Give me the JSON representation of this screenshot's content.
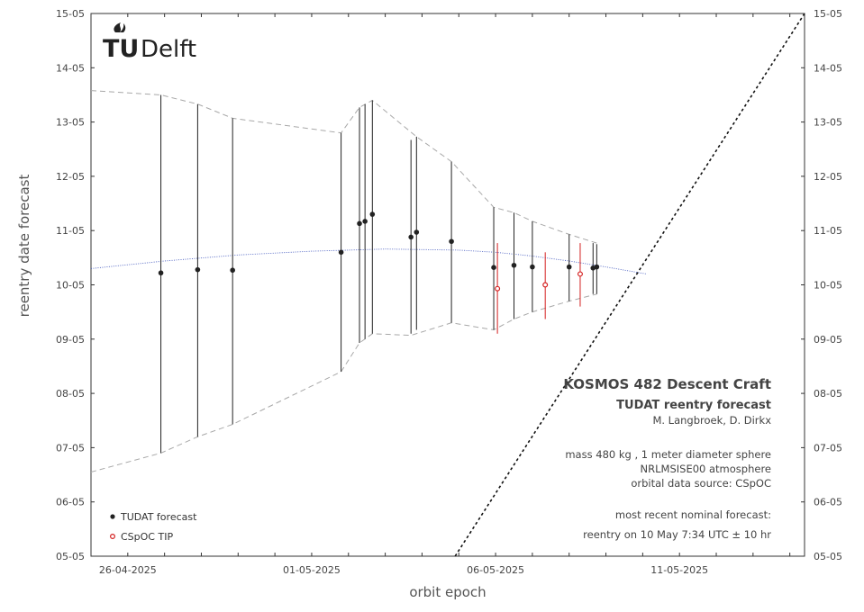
{
  "chart_data": {
    "type": "scatter",
    "xlabel": "orbit epoch",
    "ylabel": "reentry date forecast",
    "x_ticks": [
      "26-04-2025",
      "01-05-2025",
      "06-05-2025",
      "11-05-2025"
    ],
    "y_ticks": [
      "05-05",
      "06-05",
      "07-05",
      "08-05",
      "09-05",
      "10-05",
      "11-05",
      "12-05",
      "13-05",
      "14-05",
      "15-05"
    ],
    "xlim_days": [
      25.0,
      44.4
    ],
    "ylim_days": [
      35,
      45
    ],
    "x_tick_days": [
      26,
      31,
      36,
      41
    ],
    "grid": false,
    "legend_position": "bottom-left",
    "series": [
      {
        "name": "TUDAT forecast",
        "color": "#222222",
        "marker": "filled-circle",
        "points": [
          {
            "x": 26.9,
            "y": 40.22,
            "lo": 36.9,
            "hi": 43.5
          },
          {
            "x": 27.9,
            "y": 40.28,
            "lo": 37.2,
            "hi": 43.33
          },
          {
            "x": 28.85,
            "y": 40.27,
            "lo": 37.43,
            "hi": 43.07
          },
          {
            "x": 31.8,
            "y": 40.6,
            "lo": 38.4,
            "hi": 42.8
          },
          {
            "x": 32.3,
            "y": 41.13,
            "lo": 38.93,
            "hi": 43.27
          },
          {
            "x": 32.45,
            "y": 41.17,
            "lo": 39.0,
            "hi": 43.33
          },
          {
            "x": 32.65,
            "y": 41.3,
            "lo": 39.1,
            "hi": 43.4
          },
          {
            "x": 33.7,
            "y": 40.88,
            "lo": 39.1,
            "hi": 42.67
          },
          {
            "x": 33.85,
            "y": 40.97,
            "lo": 39.17,
            "hi": 42.73
          },
          {
            "x": 34.8,
            "y": 40.8,
            "lo": 39.3,
            "hi": 42.27
          },
          {
            "x": 35.95,
            "y": 40.32,
            "lo": 39.17,
            "hi": 41.43
          },
          {
            "x": 36.5,
            "y": 40.36,
            "lo": 39.37,
            "hi": 41.33
          },
          {
            "x": 37.0,
            "y": 40.33,
            "lo": 39.5,
            "hi": 41.17
          },
          {
            "x": 38.0,
            "y": 40.33,
            "lo": 39.7,
            "hi": 40.93
          },
          {
            "x": 38.65,
            "y": 40.31,
            "lo": 39.83,
            "hi": 40.77
          },
          {
            "x": 38.75,
            "y": 40.33,
            "lo": 39.83,
            "hi": 40.75
          }
        ]
      },
      {
        "name": "CSpOC TIP",
        "color": "#d42020",
        "marker": "open-circle",
        "points": [
          {
            "x": 36.05,
            "y": 39.93,
            "lo": 39.1,
            "hi": 40.77
          },
          {
            "x": 37.35,
            "y": 40.0,
            "lo": 39.37,
            "hi": 40.6
          },
          {
            "x": 38.3,
            "y": 40.2,
            "lo": 39.6,
            "hi": 40.77
          }
        ]
      }
    ],
    "upper_envelope": [
      [
        25.0,
        43.58
      ],
      [
        26.9,
        43.5
      ],
      [
        27.9,
        43.33
      ],
      [
        28.85,
        43.07
      ],
      [
        31.8,
        42.8
      ],
      [
        32.3,
        43.27
      ],
      [
        32.65,
        43.4
      ],
      [
        33.85,
        42.73
      ],
      [
        34.8,
        42.27
      ],
      [
        35.95,
        41.43
      ],
      [
        36.5,
        41.33
      ],
      [
        37.0,
        41.17
      ],
      [
        38.0,
        40.93
      ],
      [
        38.75,
        40.77
      ]
    ],
    "lower_envelope": [
      [
        25.0,
        36.55
      ],
      [
        26.9,
        36.9
      ],
      [
        27.9,
        37.2
      ],
      [
        28.85,
        37.43
      ],
      [
        31.8,
        38.4
      ],
      [
        32.3,
        38.93
      ],
      [
        32.65,
        39.1
      ],
      [
        33.7,
        39.07
      ],
      [
        34.8,
        39.3
      ],
      [
        35.95,
        39.17
      ],
      [
        36.5,
        39.37
      ],
      [
        37.0,
        39.5
      ],
      [
        38.0,
        39.7
      ],
      [
        38.75,
        39.83
      ]
    ],
    "trend_curve": [
      [
        25.0,
        40.3
      ],
      [
        27.0,
        40.44
      ],
      [
        29.0,
        40.55
      ],
      [
        31.0,
        40.62
      ],
      [
        33.0,
        40.66
      ],
      [
        35.0,
        40.64
      ],
      [
        36.0,
        40.6
      ],
      [
        37.0,
        40.53
      ],
      [
        38.0,
        40.44
      ],
      [
        39.0,
        40.33
      ],
      [
        40.1,
        40.2
      ]
    ],
    "reference_line": {
      "from": [
        34.9,
        35.0
      ],
      "to": [
        44.4,
        45.0
      ],
      "style": "dashed"
    }
  },
  "logo": {
    "text_tu": "TU",
    "text_delft": "Delft"
  },
  "info": {
    "title": "KOSMOS 482 Descent Craft",
    "subtitle": "TUDAT reentry forecast",
    "authors": "M. Langbroek, D. Dirkx",
    "line1": "mass 480 kg , 1 meter diameter sphere",
    "line2": "NRLMSISE00 atmosphere",
    "line3": "orbital data source: CSpOC",
    "line4": "most recent nominal forecast:",
    "line5": "reentry on 10 May 7:34 UTC ± 10 hr"
  },
  "colors": {
    "axis": "#333333",
    "envelope": "#a8a8a8",
    "trend": "#4a5fc1",
    "tudat": "#222222",
    "tip": "#d42020"
  }
}
